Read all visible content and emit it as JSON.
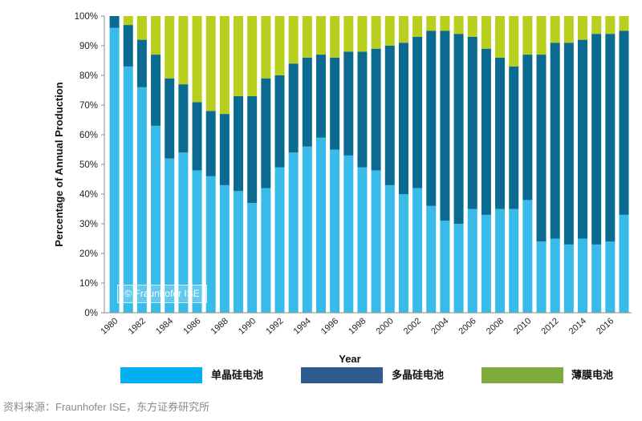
{
  "chart_data": {
    "type": "bar",
    "stacked": true,
    "x": [
      1980,
      1981,
      1982,
      1983,
      1984,
      1985,
      1986,
      1987,
      1988,
      1989,
      1990,
      1991,
      1992,
      1993,
      1994,
      1995,
      1996,
      1997,
      1998,
      1999,
      2000,
      2001,
      2002,
      2003,
      2004,
      2005,
      2006,
      2007,
      2008,
      2009,
      2010,
      2011,
      2012,
      2013,
      2014,
      2015,
      2016,
      2017
    ],
    "series": [
      {
        "name": "单晶硅电池",
        "color": "#38bbe8",
        "legend_color": "#00b0f0",
        "values": [
          96,
          83,
          76,
          63,
          52,
          54,
          48,
          46,
          43,
          41,
          37,
          42,
          49,
          54,
          56,
          59,
          55,
          53,
          49,
          48,
          43,
          40,
          42,
          36,
          31,
          30,
          35,
          33,
          35,
          35,
          38,
          24,
          25,
          23,
          25,
          23,
          24,
          33
        ]
      },
      {
        "name": "多晶硅电池",
        "color": "#0b6a90",
        "legend_color": "#2e5c8e",
        "values": [
          4,
          14,
          16,
          24,
          27,
          23,
          23,
          22,
          24,
          32,
          36,
          37,
          31,
          30,
          30,
          28,
          31,
          35,
          39,
          41,
          47,
          51,
          51,
          59,
          64,
          64,
          58,
          56,
          51,
          48,
          49,
          63,
          66,
          68,
          67,
          71,
          70,
          62
        ]
      },
      {
        "name": "薄膜电池",
        "color": "#b8cf1e",
        "legend_color": "#7faa3c",
        "values": [
          0,
          3,
          8,
          13,
          21,
          23,
          29,
          32,
          33,
          27,
          27,
          21,
          20,
          16,
          14,
          13,
          14,
          12,
          12,
          11,
          10,
          9,
          7,
          5,
          5,
          6,
          7,
          11,
          14,
          17,
          13,
          13,
          9,
          9,
          8,
          6,
          6,
          5
        ]
      }
    ],
    "xlabel": "Year",
    "ylabel": "Percentage of Annual Production",
    "y_tick_labels": [
      "0%",
      "10%",
      "20%",
      "30%",
      "40%",
      "50%",
      "60%",
      "70%",
      "80%",
      "90%",
      "100%"
    ],
    "ylim": [
      0,
      100
    ],
    "grid": false,
    "legend_position": "bottom"
  },
  "watermark": "© Fraunhofer ISE",
  "source": "资料来源：Fraunhofer ISE，东方证券研究所"
}
